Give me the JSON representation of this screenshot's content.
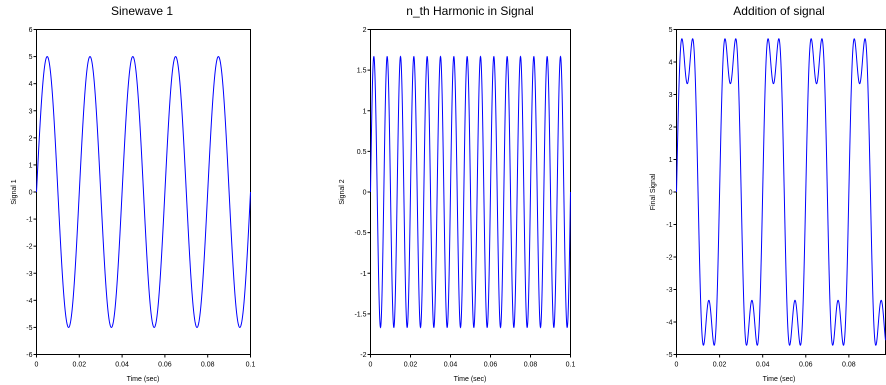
{
  "colors": {
    "line": "#0000ff",
    "axes": "#000000",
    "background": "#ffffff"
  },
  "chart_data": [
    {
      "type": "line",
      "title": "Sinewave 1",
      "xlabel": "Time (sec)",
      "ylabel": "Signal 1",
      "xlim": [
        0,
        0.1
      ],
      "ylim": [
        -6,
        6
      ],
      "xticks": [
        0,
        0.02,
        0.04,
        0.06,
        0.08,
        0.1
      ],
      "xticklabels": [
        "0",
        "0.02",
        "0.04",
        "0.06",
        "0.08",
        "0.1"
      ],
      "yticks": [
        -6,
        -5,
        -4,
        -3,
        -2,
        -1,
        0,
        1,
        2,
        3,
        4,
        5,
        6
      ],
      "yticklabels": [
        "-6",
        "-5",
        "-4",
        "-3",
        "-2",
        "-1",
        "0",
        "1",
        "2",
        "3",
        "4",
        "5",
        "6"
      ],
      "grid": false,
      "series": [
        {
          "components": [
            {
              "amplitude": 5,
              "frequency_hz": 50
            }
          ],
          "x_range": [
            0,
            0.1
          ]
        }
      ]
    },
    {
      "type": "line",
      "title": "n_th Harmonic in Signal",
      "xlabel": "Time (sec)",
      "ylabel": "Signal 2",
      "xlim": [
        0,
        0.1
      ],
      "ylim": [
        -2,
        2
      ],
      "xticks": [
        0,
        0.02,
        0.04,
        0.06,
        0.08,
        0.1
      ],
      "xticklabels": [
        "0",
        "0.02",
        "0.04",
        "0.06",
        "0.08",
        "0.1"
      ],
      "yticks": [
        -2,
        -1.5,
        -1,
        -0.5,
        0,
        0.5,
        1,
        1.5,
        2
      ],
      "yticklabels": [
        "-2",
        "-1.5",
        "-1",
        "-0.5",
        "0",
        "0.5",
        "1",
        "1.5",
        "2"
      ],
      "grid": false,
      "series": [
        {
          "components": [
            {
              "amplitude": 1.6667,
              "frequency_hz": 150
            }
          ],
          "x_range": [
            0,
            0.1
          ]
        }
      ]
    },
    {
      "type": "line",
      "title": "Addition of signal",
      "xlabel": "Time (sec)",
      "ylabel": "Final Signal",
      "xlim": [
        0,
        0.097
      ],
      "ylim": [
        -5,
        5
      ],
      "xticks": [
        0,
        0.02,
        0.04,
        0.06,
        0.08
      ],
      "xticklabels": [
        "0",
        "0.02",
        "0.04",
        "0.06",
        "0.08"
      ],
      "yticks": [
        -5,
        -4,
        -3,
        -2,
        -1,
        0,
        1,
        2,
        3,
        4,
        5
      ],
      "yticklabels": [
        "-5",
        "-4",
        "-3",
        "-2",
        "-1",
        "0",
        "1",
        "2",
        "3",
        "4",
        "5"
      ],
      "grid": false,
      "series": [
        {
          "components": [
            {
              "amplitude": 5,
              "frequency_hz": 50
            },
            {
              "amplitude": 1.6667,
              "frequency_hz": 150
            }
          ],
          "x_range": [
            0,
            0.097
          ]
        }
      ]
    }
  ]
}
